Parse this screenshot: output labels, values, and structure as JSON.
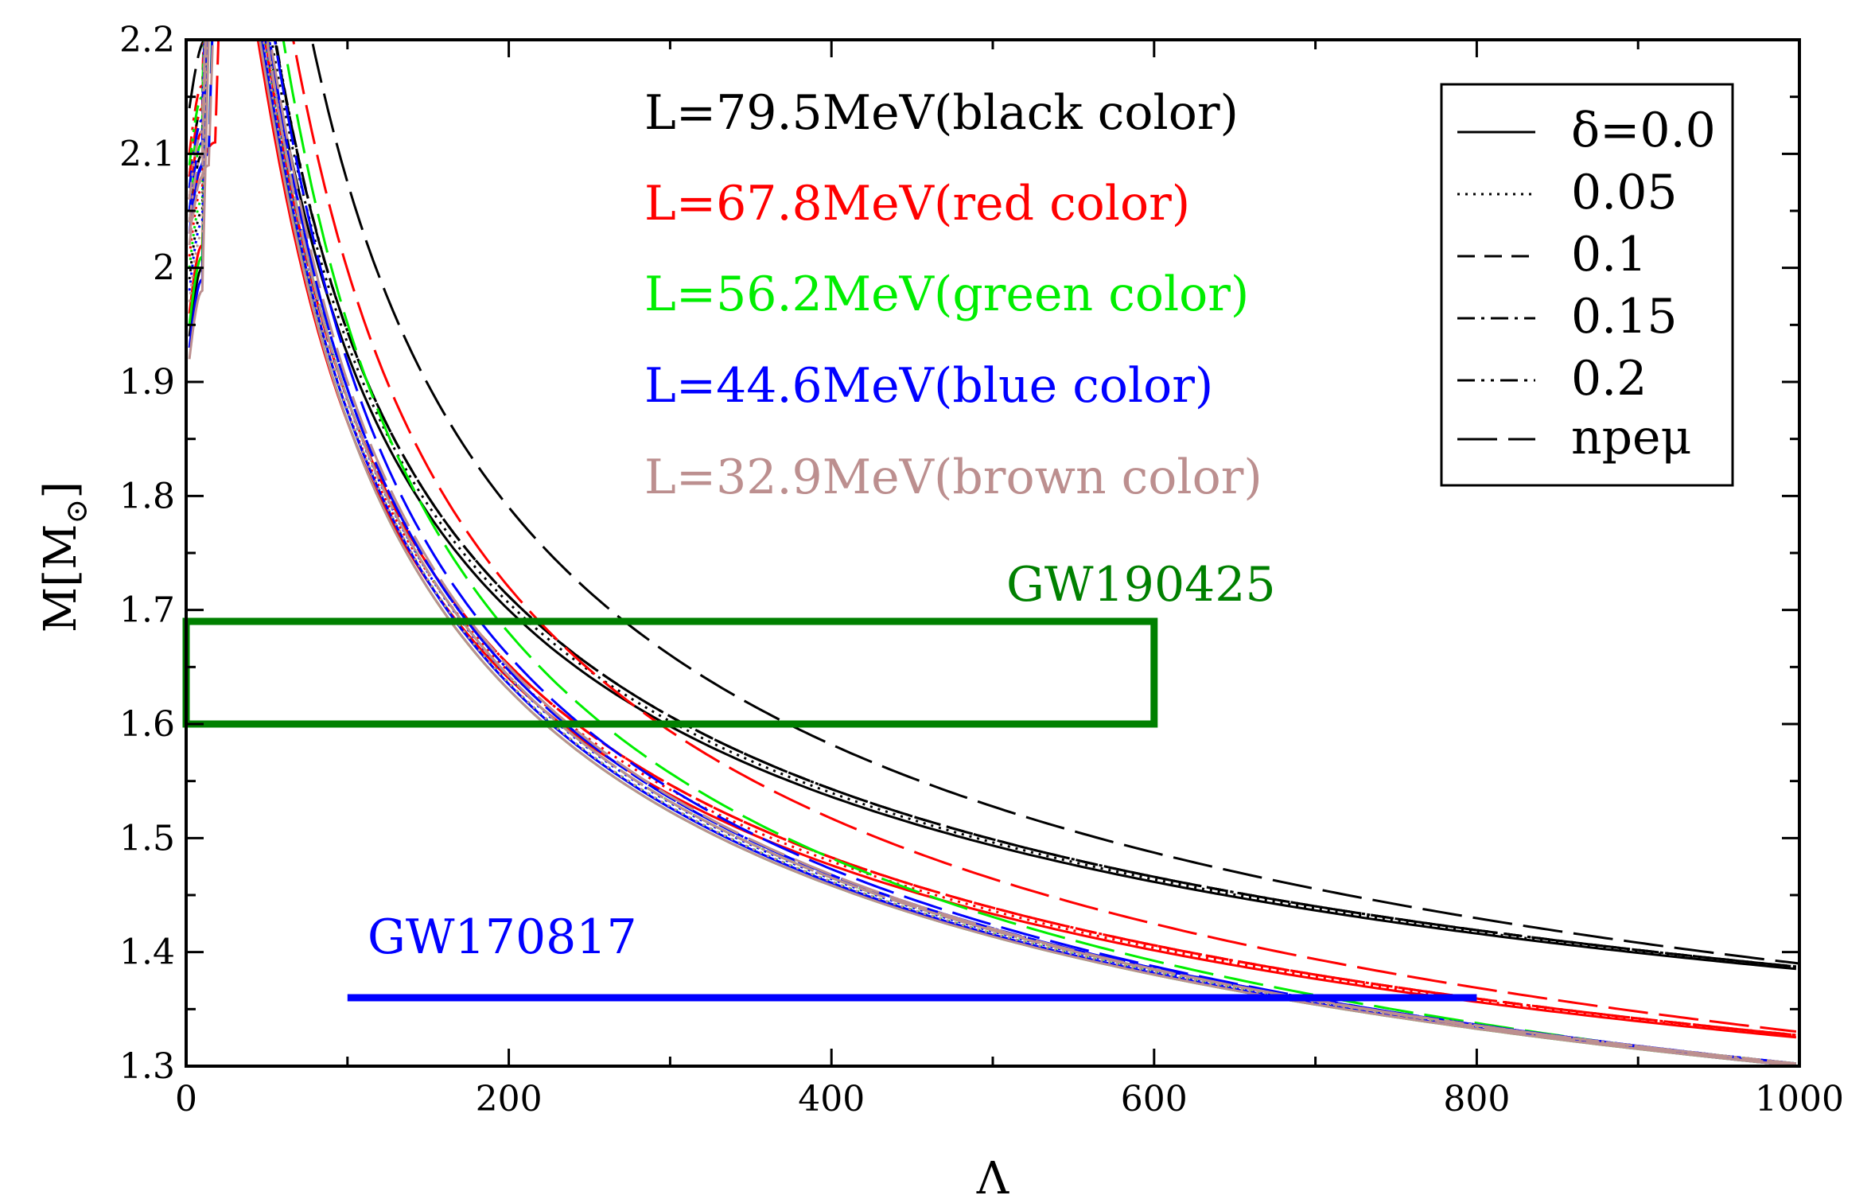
{
  "chart_data": {
    "type": "line",
    "xlabel": "Λ",
    "ylabel": "M[M",
    "ylabel_sub": "⊙",
    "ylabel_close": "]",
    "xlim": [
      0,
      1000
    ],
    "ylim": [
      1.3,
      2.2
    ],
    "xticks": [
      0,
      200,
      400,
      600,
      800,
      1000
    ],
    "yticks": [
      1.3,
      1.4,
      1.5,
      1.6,
      1.7,
      1.8,
      1.9,
      2.0,
      2.1,
      2.2
    ],
    "xtick_labels": [
      "0",
      "200",
      "400",
      "600",
      "800",
      "1000"
    ],
    "ytick_labels": [
      "1.3",
      "1.4",
      "1.5",
      "1.6",
      "1.7",
      "1.8",
      "1.9",
      "2",
      "2.1",
      "2.2"
    ],
    "groups": [
      {
        "label": "L=79.5MeV(black color)",
        "color": "#000000",
        "peakM": 2.0,
        "peakL": 10,
        "M200": 1.7,
        "A": 0.0,
        "np_peakM": 2.2,
        "np_peakL": 12,
        "np_M200": 1.79
      },
      {
        "label": "L=67.8MeV(red color)",
        "color": "#ff0000",
        "peakM": 2.02,
        "peakL": 10,
        "M200": 1.64,
        "A": 0.0,
        "np_peakM": 2.11,
        "np_peakL": 18,
        "np_M200": 1.72
      },
      {
        "label": "L=56.2MeV(green color)",
        "color": "#00ee00",
        "peakM": 2.01,
        "peakL": 10,
        "M200": 1.63,
        "A": 0.0,
        "np_peakM": 2.1,
        "np_peakL": 14,
        "np_M200": 1.68
      },
      {
        "label": "L=44.6MeV(blue color)",
        "color": "#0000ff",
        "peakM": 1.99,
        "peakL": 10,
        "M200": 1.635,
        "A": 0.0,
        "np_peakM": 2.1,
        "np_peakL": 14,
        "np_M200": 1.66
      },
      {
        "label": "L=32.9MeV(brown color)",
        "color": "#bc8f8f",
        "peakM": 1.98,
        "peakL": 10,
        "M200": 1.63,
        "A": 0.0,
        "np_peakM": 2.09,
        "np_peakL": 14,
        "np_M200": 1.65
      }
    ],
    "end_values": {
      "black": {
        "d0": 1.385,
        "np": 1.39
      },
      "red": {
        "d0": 1.325,
        "np": 1.33
      },
      "green": {
        "d0": 1.3,
        "np": 1.3
      },
      "blue": {
        "d0": 1.3,
        "np": 1.3
      },
      "brown": {
        "d0": 1.3,
        "np": 1.3
      }
    },
    "legend": {
      "placement": "top-right",
      "entries": [
        {
          "label": "δ=0.0",
          "dash": "solid"
        },
        {
          "label": "0.05",
          "dash": "dotted"
        },
        {
          "label": "0.1",
          "dash": "dashed"
        },
        {
          "label": "0.15",
          "dash": "dash-dot"
        },
        {
          "label": "0.2",
          "dash": "dash-dot-dot"
        },
        {
          "label": "npeμ",
          "dash": "long-dash"
        }
      ]
    },
    "annotations": [
      {
        "label": "GW190425",
        "color": "#008000",
        "type": "box",
        "x_range": [
          0,
          600
        ],
        "y_range": [
          1.6,
          1.69
        ]
      },
      {
        "label": "GW170817",
        "color": "#0000ff",
        "type": "line",
        "x_range": [
          100,
          800
        ],
        "y": 1.36
      }
    ]
  }
}
